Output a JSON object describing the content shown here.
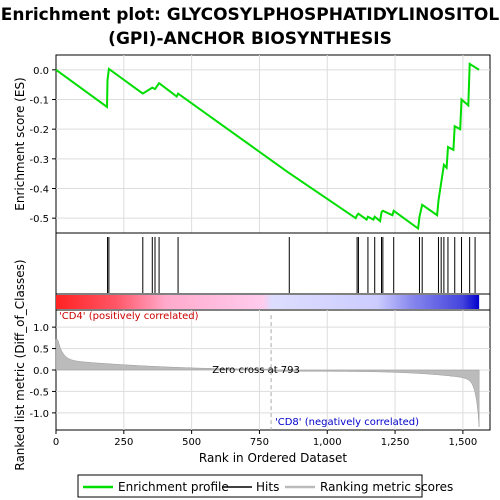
{
  "chart_data": {
    "type": "line",
    "title_line1": "Enrichment plot: GLYCOSYLPHOSPHATIDYLINOSITOL",
    "title_line2": "(GPI)-ANCHOR BIOSYNTHESIS",
    "es_ylabel": "Enrichment score (ES)",
    "metric_ylabel_line1": "Ranked list metric (Diff_of_Classes)",
    "xlabel": "Rank in Ordered Dataset",
    "xlim": [
      0,
      1600
    ],
    "es_ylim": [
      -0.55,
      0.05
    ],
    "metric_ylim": [
      -1.4,
      1.4
    ],
    "x_ticks": [
      0,
      250,
      500,
      750,
      1000,
      1250,
      1500
    ],
    "x_tick_labels": [
      "0",
      "250",
      "500",
      "750",
      "1,000",
      "1,250",
      "1,500"
    ],
    "es_ticks": [
      0.0,
      -0.1,
      -0.2,
      -0.3,
      -0.4,
      -0.5
    ],
    "es_tick_labels": [
      "0.0",
      "-0.1",
      "-0.2",
      "-0.3",
      "-0.4",
      "-0.5"
    ],
    "metric_ticks": [
      1.0,
      0.5,
      0.0,
      -0.5,
      -1.0
    ],
    "metric_tick_labels": [
      "1.0",
      "0.5",
      "0.0",
      "-0.5",
      "-1.0"
    ],
    "hits": [
      190,
      195,
      320,
      355,
      365,
      380,
      450,
      860,
      1110,
      1115,
      1150,
      1175,
      1200,
      1205,
      1245,
      1340,
      1350,
      1410,
      1420,
      1430,
      1445,
      1470,
      1495,
      1525,
      1545
    ],
    "es_profile": {
      "x": [
        0,
        188,
        190,
        195,
        320,
        355,
        365,
        380,
        445,
        450,
        855,
        1105,
        1110,
        1115,
        1145,
        1150,
        1170,
        1175,
        1195,
        1200,
        1205,
        1240,
        1245,
        1335,
        1340,
        1350,
        1405,
        1410,
        1420,
        1430,
        1440,
        1445,
        1465,
        1470,
        1490,
        1495,
        1520,
        1525,
        1560
      ],
      "y": [
        0.0,
        -0.125,
        -0.035,
        0.003,
        -0.08,
        -0.06,
        -0.065,
        -0.045,
        -0.09,
        -0.08,
        -0.345,
        -0.5,
        -0.49,
        -0.485,
        -0.505,
        -0.495,
        -0.505,
        -0.495,
        -0.51,
        -0.48,
        -0.475,
        -0.49,
        -0.475,
        -0.535,
        -0.495,
        -0.455,
        -0.49,
        -0.44,
        -0.38,
        -0.32,
        -0.33,
        -0.26,
        -0.27,
        -0.19,
        -0.2,
        -0.1,
        -0.12,
        0.02,
        0.0
      ]
    },
    "zero_cross": 793,
    "zero_cross_label": "Zero cross at 793",
    "pos_label": "'CD4' (positively correlated)",
    "neg_label": "'CD8' (negatively correlated)",
    "legend": [
      "Enrichment profile",
      "Hits",
      "Ranking metric scores"
    ],
    "colors": {
      "es_line": "#00dd00",
      "hit": "#000000",
      "metric_fill": "#bbbbbb",
      "pos_red": "#ff0000",
      "pos_pink": "#ffbbee",
      "neg_lavender": "#ccccff",
      "neg_blue": "#0000dd",
      "grid": "#dddddd",
      "zero_line": "#aaaaaa"
    }
  }
}
